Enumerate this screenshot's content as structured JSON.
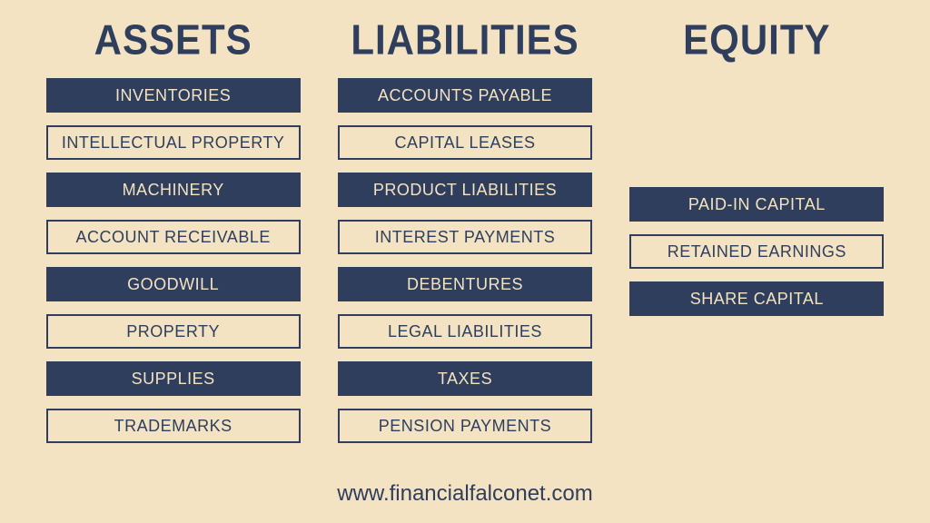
{
  "background_color": "#f3e3c3",
  "accent_color": "#2e3e5c",
  "columns": [
    {
      "header": "ASSETS",
      "items": [
        {
          "label": "INVENTORIES",
          "style": "filled"
        },
        {
          "label": "INTELLECTUAL PROPERTY",
          "style": "outlined"
        },
        {
          "label": "MACHINERY",
          "style": "filled"
        },
        {
          "label": "ACCOUNT RECEIVABLE",
          "style": "outlined"
        },
        {
          "label": "GOODWILL",
          "style": "filled"
        },
        {
          "label": "PROPERTY",
          "style": "outlined"
        },
        {
          "label": "SUPPLIES",
          "style": "filled"
        },
        {
          "label": "TRADEMARKS",
          "style": "outlined"
        }
      ]
    },
    {
      "header": "LIABILITIES",
      "items": [
        {
          "label": "ACCOUNTS PAYABLE",
          "style": "filled"
        },
        {
          "label": "CAPITAL LEASES",
          "style": "outlined"
        },
        {
          "label": "PRODUCT LIABILITIES",
          "style": "filled"
        },
        {
          "label": "INTEREST PAYMENTS",
          "style": "outlined"
        },
        {
          "label": "DEBENTURES",
          "style": "filled"
        },
        {
          "label": "LEGAL LIABILITIES",
          "style": "outlined"
        },
        {
          "label": "TAXES",
          "style": "filled"
        },
        {
          "label": "PENSION PAYMENTS",
          "style": "outlined"
        }
      ]
    },
    {
      "header": "EQUITY",
      "spacer": true,
      "items": [
        {
          "label": "PAID-IN CAPITAL",
          "style": "filled"
        },
        {
          "label": "RETAINED EARNINGS",
          "style": "outlined"
        },
        {
          "label": "SHARE CAPITAL",
          "style": "filled"
        }
      ]
    }
  ],
  "footer": "www.financialfalconet.com"
}
